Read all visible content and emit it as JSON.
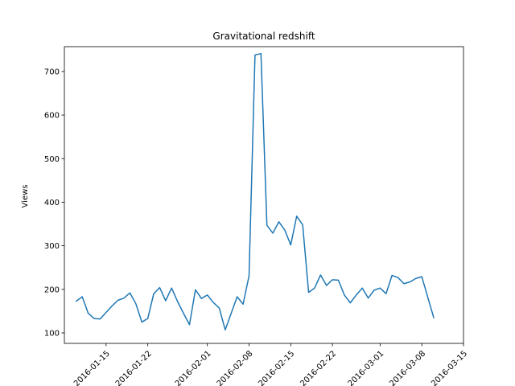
{
  "chart_data": {
    "type": "line",
    "title": "Gravitational redshift",
    "xlabel": "",
    "ylabel": "Views",
    "x_tick_labels": [
      "2016-01-15",
      "2016-01-22",
      "2016-02-01",
      "2016-02-08",
      "2016-02-15",
      "2016-02-22",
      "2016-03-01",
      "2016-03-08",
      "2016-03-15"
    ],
    "y_ticks": [
      100,
      200,
      300,
      400,
      500,
      600,
      700
    ],
    "ylim": [
      76,
      757
    ],
    "xlim": [
      "2016-01-08",
      "2016-03-15"
    ],
    "grid": false,
    "line_color": "#1f77b4",
    "x": [
      "2016-01-10",
      "2016-01-11",
      "2016-01-12",
      "2016-01-13",
      "2016-01-14",
      "2016-01-15",
      "2016-01-16",
      "2016-01-17",
      "2016-01-18",
      "2016-01-19",
      "2016-01-20",
      "2016-01-21",
      "2016-01-22",
      "2016-01-23",
      "2016-01-24",
      "2016-01-25",
      "2016-01-26",
      "2016-01-27",
      "2016-01-28",
      "2016-01-29",
      "2016-01-30",
      "2016-01-31",
      "2016-02-01",
      "2016-02-02",
      "2016-02-03",
      "2016-02-04",
      "2016-02-05",
      "2016-02-06",
      "2016-02-07",
      "2016-02-08",
      "2016-02-09",
      "2016-02-10",
      "2016-02-11",
      "2016-02-12",
      "2016-02-13",
      "2016-02-14",
      "2016-02-15",
      "2016-02-16",
      "2016-02-17",
      "2016-02-18",
      "2016-02-19",
      "2016-02-20",
      "2016-02-21",
      "2016-02-22",
      "2016-02-23",
      "2016-02-24",
      "2016-02-25",
      "2016-02-26",
      "2016-02-27",
      "2016-02-28",
      "2016-02-29",
      "2016-03-01",
      "2016-03-02",
      "2016-03-03",
      "2016-03-04",
      "2016-03-05",
      "2016-03-06",
      "2016-03-07",
      "2016-03-08",
      "2016-03-09",
      "2016-03-10",
      "2016-03-11",
      "2016-03-12"
    ],
    "series": [
      {
        "values": [
          173,
          183,
          145,
          133,
          132,
          147,
          162,
          175,
          180,
          192,
          167,
          125,
          133,
          190,
          204,
          174,
          203,
          172,
          145,
          119,
          199,
          179,
          187,
          170,
          157,
          107,
          145,
          183,
          166,
          231,
          738,
          741,
          347,
          329,
          355,
          336,
          302,
          368,
          348,
          193,
          203,
          233,
          209,
          222,
          221,
          187,
          169,
          187,
          203,
          180,
          198,
          203,
          190,
          232,
          227,
          213,
          217,
          225,
          229,
          182,
          135,
          null,
          null
        ]
      }
    ]
  }
}
